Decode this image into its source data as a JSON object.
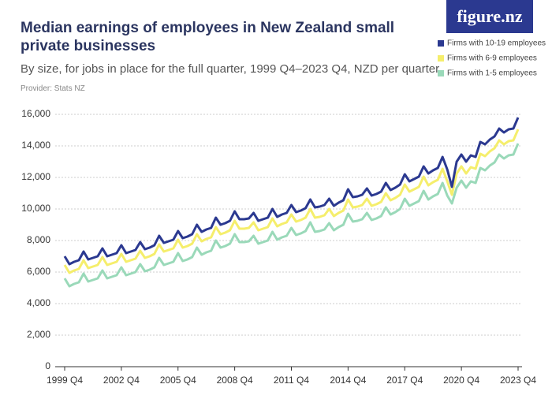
{
  "chart_data": {
    "type": "line",
    "title": "Median earnings of employees in New Zealand small private businesses",
    "subtitle": "By size, for jobs in place for the full quarter, 1999 Q4–2023 Q4, NZD per quarter",
    "provider": "Provider: Stats NZ",
    "logo": "figure.nz",
    "categories": [
      "1999 Q4",
      null,
      null,
      null,
      null,
      null,
      null,
      null,
      null,
      null,
      null,
      null,
      "2002 Q4",
      null,
      null,
      null,
      null,
      null,
      null,
      null,
      null,
      null,
      null,
      null,
      "2005 Q4",
      null,
      null,
      null,
      null,
      null,
      null,
      null,
      null,
      null,
      null,
      null,
      "2008 Q4",
      null,
      null,
      null,
      null,
      null,
      null,
      null,
      null,
      null,
      null,
      null,
      "2011 Q4",
      null,
      null,
      null,
      null,
      null,
      null,
      null,
      null,
      null,
      null,
      null,
      "2014 Q4",
      null,
      null,
      null,
      null,
      null,
      null,
      null,
      null,
      null,
      null,
      null,
      "2017 Q4",
      null,
      null,
      null,
      null,
      null,
      null,
      null,
      null,
      null,
      null,
      null,
      "2020 Q4",
      null,
      null,
      null,
      null,
      null,
      null,
      null,
      null,
      null,
      null,
      null,
      "2023 Q4"
    ],
    "series": [
      {
        "name": "Firms with 10-19 employees",
        "color": "#2b3990",
        "values": [
          7000,
          6500,
          6650,
          6750,
          7300,
          6800,
          6900,
          7000,
          7500,
          7000,
          7100,
          7200,
          7700,
          7200,
          7300,
          7400,
          7900,
          7450,
          7550,
          7700,
          8300,
          7850,
          7950,
          8050,
          8600,
          8150,
          8250,
          8400,
          9000,
          8550,
          8700,
          8800,
          9450,
          9000,
          9100,
          9250,
          9850,
          9350,
          9350,
          9400,
          9750,
          9250,
          9350,
          9450,
          10000,
          9500,
          9650,
          9750,
          10250,
          9800,
          9900,
          10050,
          10600,
          10100,
          10150,
          10250,
          10650,
          10200,
          10400,
          10550,
          11250,
          10750,
          10800,
          10900,
          11300,
          10850,
          10950,
          11100,
          11650,
          11200,
          11350,
          11550,
          12200,
          11750,
          11900,
          12050,
          12700,
          12250,
          12450,
          12600,
          13300,
          12500,
          11400,
          13000,
          13450,
          13000,
          13400,
          13300,
          14250,
          14100,
          14400,
          14600,
          15100,
          14850,
          15050,
          15100,
          15800
        ]
      },
      {
        "name": "Firms with 6-9 employees",
        "color": "#f5ee6c",
        "values": [
          6450,
          5950,
          6100,
          6200,
          6750,
          6250,
          6350,
          6450,
          6950,
          6450,
          6550,
          6650,
          7150,
          6650,
          6750,
          6850,
          7350,
          6900,
          7000,
          7150,
          7750,
          7300,
          7400,
          7500,
          8050,
          7550,
          7650,
          7800,
          8400,
          7950,
          8100,
          8200,
          8850,
          8400,
          8500,
          8650,
          9250,
          8750,
          8750,
          8800,
          9150,
          8650,
          8750,
          8850,
          9400,
          8900,
          9050,
          9150,
          9650,
          9200,
          9300,
          9450,
          10000,
          9450,
          9500,
          9600,
          10000,
          9550,
          9750,
          9900,
          10600,
          10100,
          10150,
          10250,
          10650,
          10200,
          10300,
          10450,
          11000,
          10550,
          10700,
          10900,
          11550,
          11100,
          11250,
          11400,
          12050,
          11500,
          11700,
          11850,
          12550,
          11750,
          10900,
          12250,
          12700,
          12250,
          12650,
          12550,
          13500,
          13350,
          13650,
          13850,
          14350,
          14100,
          14300,
          14350,
          15050
        ]
      },
      {
        "name": "Firms with 1-5 employees",
        "color": "#9ad9b9",
        "values": [
          5600,
          5100,
          5250,
          5350,
          5900,
          5400,
          5500,
          5600,
          6100,
          5600,
          5700,
          5800,
          6300,
          5800,
          5900,
          6000,
          6500,
          6050,
          6150,
          6300,
          6900,
          6450,
          6550,
          6650,
          7200,
          6700,
          6800,
          6950,
          7550,
          7100,
          7250,
          7350,
          8000,
          7550,
          7650,
          7800,
          8400,
          7900,
          7900,
          7950,
          8300,
          7800,
          7900,
          8000,
          8550,
          8050,
          8200,
          8300,
          8800,
          8350,
          8450,
          8600,
          9150,
          8550,
          8600,
          8700,
          9100,
          8650,
          8850,
          9000,
          9700,
          9200,
          9250,
          9350,
          9750,
          9300,
          9400,
          9550,
          10100,
          9650,
          9800,
          10000,
          10650,
          10200,
          10350,
          10500,
          11150,
          10600,
          10800,
          10950,
          11650,
          10850,
          10350,
          11350,
          11800,
          11350,
          11750,
          11650,
          12600,
          12450,
          12750,
          12950,
          13450,
          13200,
          13400,
          13450,
          14150
        ]
      }
    ],
    "ylim": [
      0,
      16000
    ],
    "yticks": [
      0,
      {
        "value": 2000,
        "label": "2,000"
      },
      {
        "value": 4000,
        "label": "4,000"
      },
      {
        "value": 6000,
        "label": "6,000"
      },
      {
        "value": 8000,
        "label": "8,000"
      },
      {
        "value": 10000,
        "label": "10,000"
      },
      {
        "value": 12000,
        "label": "12,000"
      },
      {
        "value": 14000,
        "label": "14,000"
      },
      {
        "value": 16000,
        "label": "16,000"
      }
    ],
    "grid": true,
    "legend": "top-right"
  }
}
